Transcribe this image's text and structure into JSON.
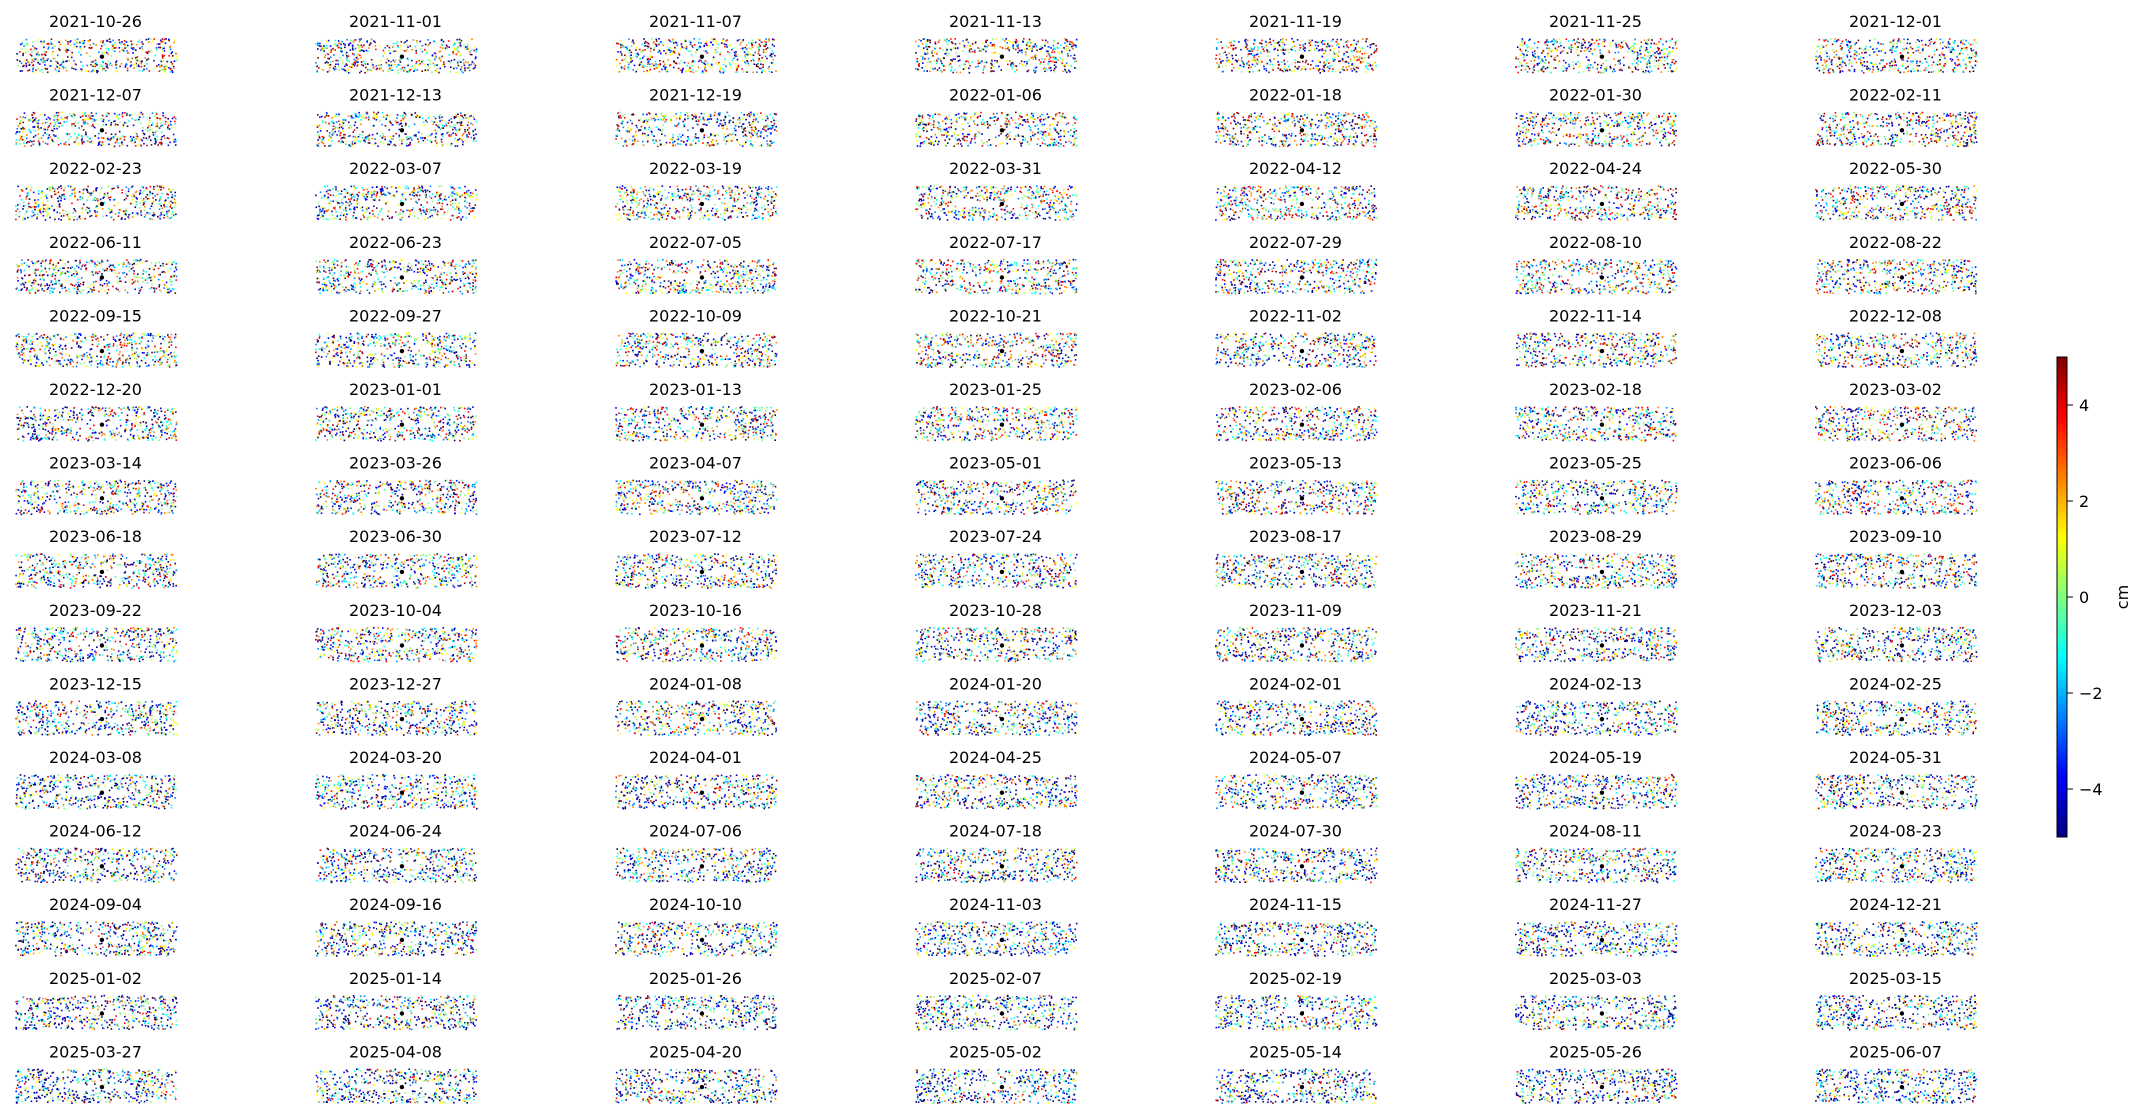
{
  "chart_data": {
    "type": "heatmap",
    "description_units": "cm",
    "grid": {
      "rows": 15,
      "cols": 7
    },
    "panels": [
      "2021-10-26",
      "2021-11-01",
      "2021-11-07",
      "2021-11-13",
      "2021-11-19",
      "2021-11-25",
      "2021-12-01",
      "2021-12-07",
      "2021-12-13",
      "2021-12-19",
      "2022-01-06",
      "2022-01-18",
      "2022-01-30",
      "2022-02-11",
      "2022-02-23",
      "2022-03-07",
      "2022-03-19",
      "2022-03-31",
      "2022-04-12",
      "2022-04-24",
      "2022-05-30",
      "2022-06-11",
      "2022-06-23",
      "2022-07-05",
      "2022-07-17",
      "2022-07-29",
      "2022-08-10",
      "2022-08-22",
      "2022-09-15",
      "2022-09-27",
      "2022-10-09",
      "2022-10-21",
      "2022-11-02",
      "2022-11-14",
      "2022-12-08",
      "2022-12-20",
      "2023-01-01",
      "2023-01-13",
      "2023-01-25",
      "2023-02-06",
      "2023-02-18",
      "2023-03-02",
      "2023-03-14",
      "2023-03-26",
      "2023-04-07",
      "2023-05-01",
      "2023-05-13",
      "2023-05-25",
      "2023-06-06",
      "2023-06-18",
      "2023-06-30",
      "2023-07-12",
      "2023-07-24",
      "2023-08-17",
      "2023-08-29",
      "2023-09-10",
      "2023-09-22",
      "2023-10-04",
      "2023-10-16",
      "2023-10-28",
      "2023-11-09",
      "2023-11-21",
      "2023-12-03",
      "2023-12-15",
      "2023-12-27",
      "2024-01-08",
      "2024-01-20",
      "2024-02-01",
      "2024-02-13",
      "2024-02-25",
      "2024-03-08",
      "2024-03-20",
      "2024-04-01",
      "2024-04-25",
      "2024-05-07",
      "2024-05-19",
      "2024-05-31",
      "2024-06-12",
      "2024-06-24",
      "2024-07-06",
      "2024-07-18",
      "2024-07-30",
      "2024-08-11",
      "2024-08-23",
      "2024-09-04",
      "2024-09-16",
      "2024-10-10",
      "2024-11-03",
      "2024-11-15",
      "2024-11-27",
      "2024-12-21",
      "2025-01-02",
      "2025-01-14",
      "2025-01-26",
      "2025-02-07",
      "2025-02-19",
      "2025-03-03",
      "2025-03-15",
      "2025-03-27",
      "2025-04-08",
      "2025-04-20",
      "2025-05-02",
      "2025-05-14",
      "2025-05-26",
      "2025-06-07"
    ],
    "colorbar": {
      "label": "cm",
      "range": [
        -5,
        5
      ],
      "ticks": [
        4,
        2,
        0,
        -2,
        -4
      ],
      "tick_labels": [
        "4",
        "2",
        "0",
        "−2",
        "−4"
      ],
      "colormap": "jet"
    }
  },
  "colors": {
    "jet": [
      "#00007f",
      "#0000ff",
      "#007fff",
      "#00ffff",
      "#7fff7f",
      "#ffff00",
      "#ff7f00",
      "#ff0000",
      "#7f0000"
    ],
    "reference_point": "#000000"
  }
}
